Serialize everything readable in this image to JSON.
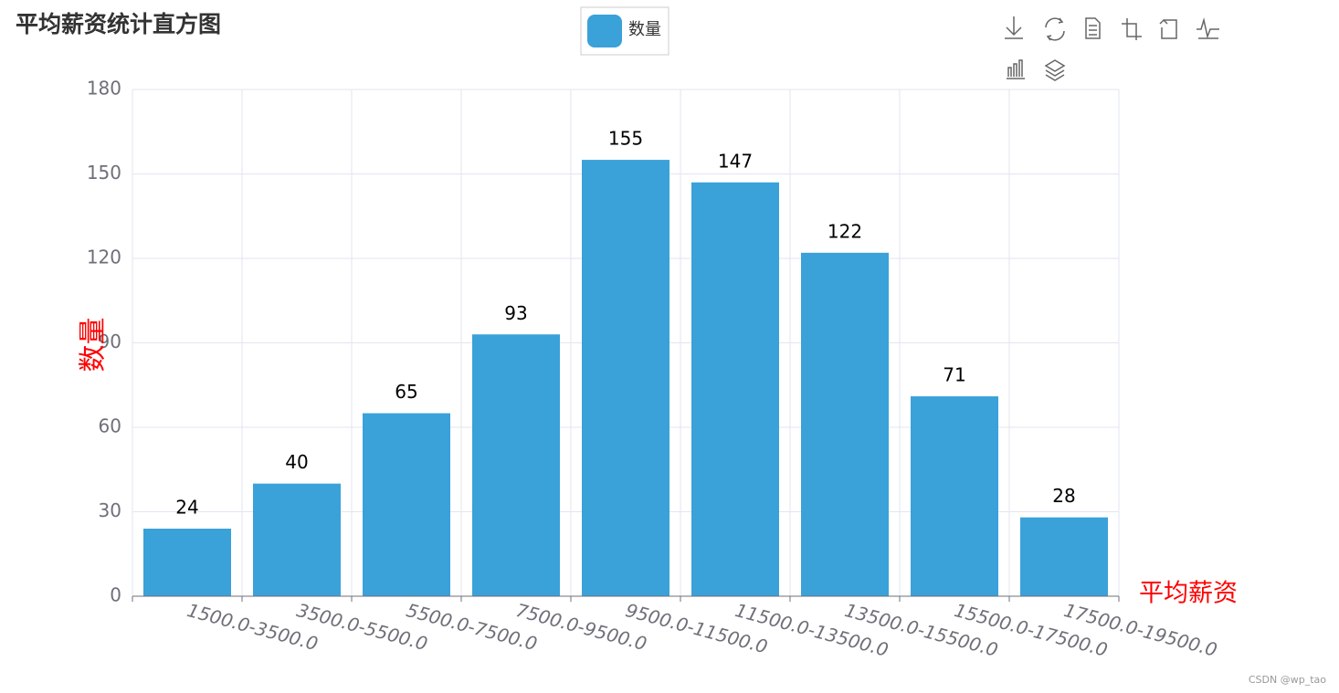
{
  "chart_data": {
    "type": "bar",
    "title": "平均薪资统计直方图",
    "categories": [
      "1500.0-3500.0",
      "3500.0-5500.0",
      "5500.0-7500.0",
      "7500.0-9500.0",
      "9500.0-11500.0",
      "11500.0-13500.0",
      "13500.0-15500.0",
      "15500.0-17500.0",
      "17500.0-19500.0"
    ],
    "series": [
      {
        "name": "数量",
        "color": "#3aa1d9",
        "values": [
          24,
          40,
          65,
          93,
          155,
          147,
          122,
          71,
          28
        ]
      }
    ],
    "x_axis_name": "平均薪资",
    "y_axis_name": "数量",
    "ylim": [
      0,
      180
    ],
    "yticks": [
      0,
      30,
      60,
      90,
      120,
      150,
      180
    ],
    "grid": true
  },
  "watermark": "CSDN @wp_tao"
}
